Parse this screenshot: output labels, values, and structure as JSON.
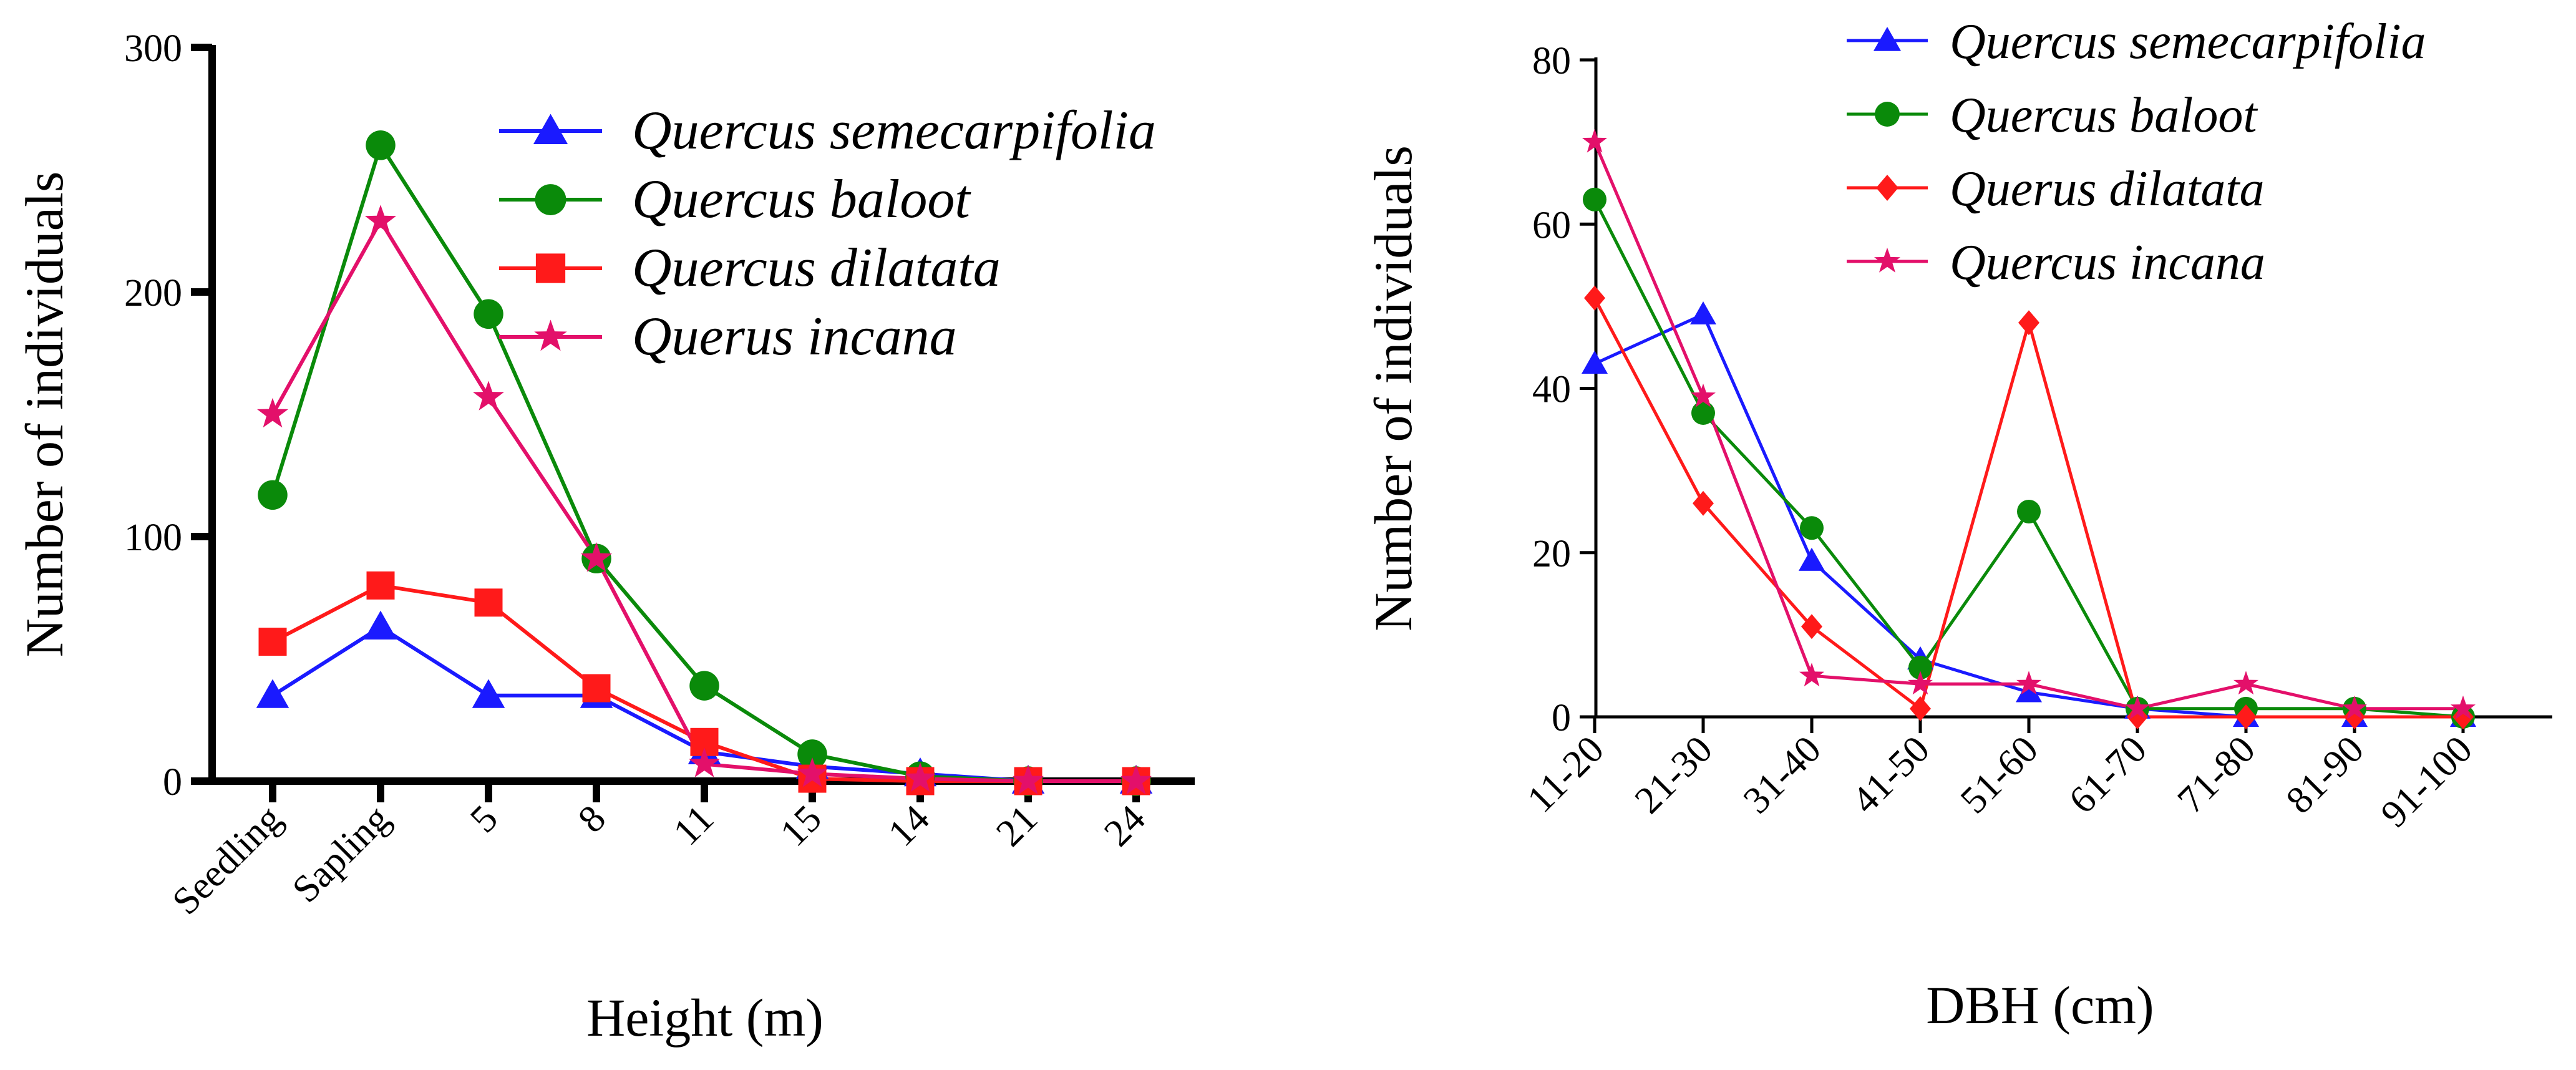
{
  "chart_data": [
    {
      "type": "line",
      "xlabel": "Height (m)",
      "ylabel": "Number of individuals",
      "ylim": [
        0,
        300
      ],
      "yticks": [
        0,
        100,
        200,
        300
      ],
      "categories": [
        "Seedling",
        "Sapling",
        "5",
        "8",
        "11",
        "15",
        "14",
        "21",
        "24"
      ],
      "legend_position": "top-right",
      "series": [
        {
          "name": "Quercus semecarpifolia",
          "color": "#1a1aff",
          "marker": "triangle",
          "values": [
            35,
            63,
            35,
            35,
            12,
            6,
            3,
            0,
            0
          ]
        },
        {
          "name": "Quercus baloot",
          "color": "#0a8a0a",
          "marker": "circle",
          "values": [
            117,
            260,
            191,
            91,
            39,
            11,
            2,
            0,
            0
          ]
        },
        {
          "name": "Quercus dilatata",
          "color": "#ff1a1a",
          "marker": "square",
          "values": [
            57,
            80,
            73,
            38,
            16,
            1,
            0,
            0,
            0
          ]
        },
        {
          "name": "Querus incana",
          "color": "#e3106a",
          "marker": "star",
          "values": [
            150,
            229,
            157,
            91,
            7,
            3,
            1,
            0,
            0
          ]
        }
      ]
    },
    {
      "type": "line",
      "xlabel": "DBH (cm)",
      "ylabel": "Number of individuals",
      "ylim": [
        0,
        80
      ],
      "yticks": [
        0,
        20,
        40,
        60,
        80
      ],
      "categories": [
        "11-20",
        "21-30",
        "31-40",
        "41-50",
        "51-60",
        "61-70",
        "71-80",
        "81-90",
        "91-100"
      ],
      "legend_position": "top-right",
      "series": [
        {
          "name": "Quercus semecarpifolia",
          "color": "#1a1aff",
          "marker": "triangle",
          "values": [
            43,
            49,
            19,
            7,
            3,
            1,
            0,
            0,
            0
          ]
        },
        {
          "name": "Quercus baloot",
          "color": "#0a8a0a",
          "marker": "circle",
          "values": [
            63,
            37,
            23,
            6,
            25,
            1,
            1,
            1,
            0
          ]
        },
        {
          "name": "Querus dilatata",
          "color": "#ff1a1a",
          "marker": "diamond",
          "values": [
            51,
            26,
            11,
            1,
            48,
            0,
            0,
            0,
            0
          ]
        },
        {
          "name": "Quercus incana",
          "color": "#e3106a",
          "marker": "star",
          "values": [
            70,
            39,
            5,
            4,
            4,
            1,
            4,
            1,
            1
          ]
        }
      ]
    }
  ]
}
